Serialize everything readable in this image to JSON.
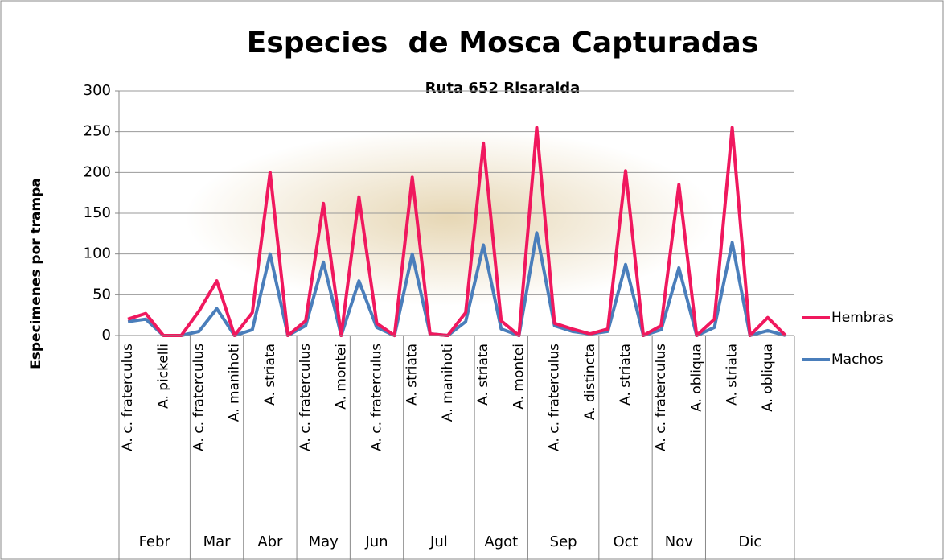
{
  "chart_data": {
    "type": "line",
    "title": "Especies  de Mosca Capturadas",
    "subtitle": "Ruta 652 Risaralda",
    "y_label": "Especimenes por trampa",
    "groups": [
      {
        "name": "Febr",
        "categories": [
          "A. c. fraterculus",
          null,
          "A. pickelli",
          null
        ]
      },
      {
        "name": "Mar",
        "categories": [
          "A. c. fraterculus",
          null,
          "A. manihoti"
        ]
      },
      {
        "name": "Abr",
        "categories": [
          null,
          "A. striata",
          null
        ]
      },
      {
        "name": "May",
        "categories": [
          "A. c. fraterculus",
          null,
          "A. montei"
        ]
      },
      {
        "name": "Jun",
        "categories": [
          null,
          "A. c. fraterculus",
          null
        ]
      },
      {
        "name": "Jul",
        "categories": [
          "A. striata",
          null,
          "A. manihoti",
          null
        ]
      },
      {
        "name": "Agot",
        "categories": [
          "A. striata",
          null,
          "A. montei"
        ]
      },
      {
        "name": "Sep",
        "categories": [
          null,
          "A. c. fraterculus",
          null,
          "A. distincta"
        ]
      },
      {
        "name": "Oct",
        "categories": [
          null,
          "A. striata",
          null
        ]
      },
      {
        "name": "Nov",
        "categories": [
          "A. c. fraterculus",
          null,
          "A. obliqua"
        ]
      },
      {
        "name": "Dic",
        "categories": [
          null,
          "A. striata",
          null,
          "A. obliqua",
          null
        ]
      }
    ],
    "series": [
      {
        "name": "Hembras",
        "color": "#f0185e",
        "values": [
          20,
          27,
          0,
          0,
          30,
          67,
          0,
          28,
          200,
          0,
          18,
          162,
          0,
          170,
          15,
          0,
          194,
          2,
          0,
          28,
          236,
          18,
          0,
          255,
          15,
          8,
          2,
          8,
          202,
          0,
          12,
          185,
          0,
          20,
          255,
          0,
          22,
          0
        ]
      },
      {
        "name": "Machos",
        "color": "#4a7ebb",
        "values": [
          17,
          20,
          0,
          0,
          5,
          33,
          0,
          7,
          100,
          0,
          12,
          90,
          0,
          67,
          10,
          0,
          100,
          2,
          0,
          17,
          111,
          8,
          0,
          126,
          12,
          5,
          2,
          5,
          87,
          0,
          7,
          83,
          0,
          10,
          114,
          0,
          6,
          0
        ]
      }
    ],
    "ylim": [
      0,
      300
    ],
    "yticks": [
      0,
      50,
      100,
      150,
      200,
      250,
      300
    ],
    "grid": true,
    "legend": "right"
  }
}
